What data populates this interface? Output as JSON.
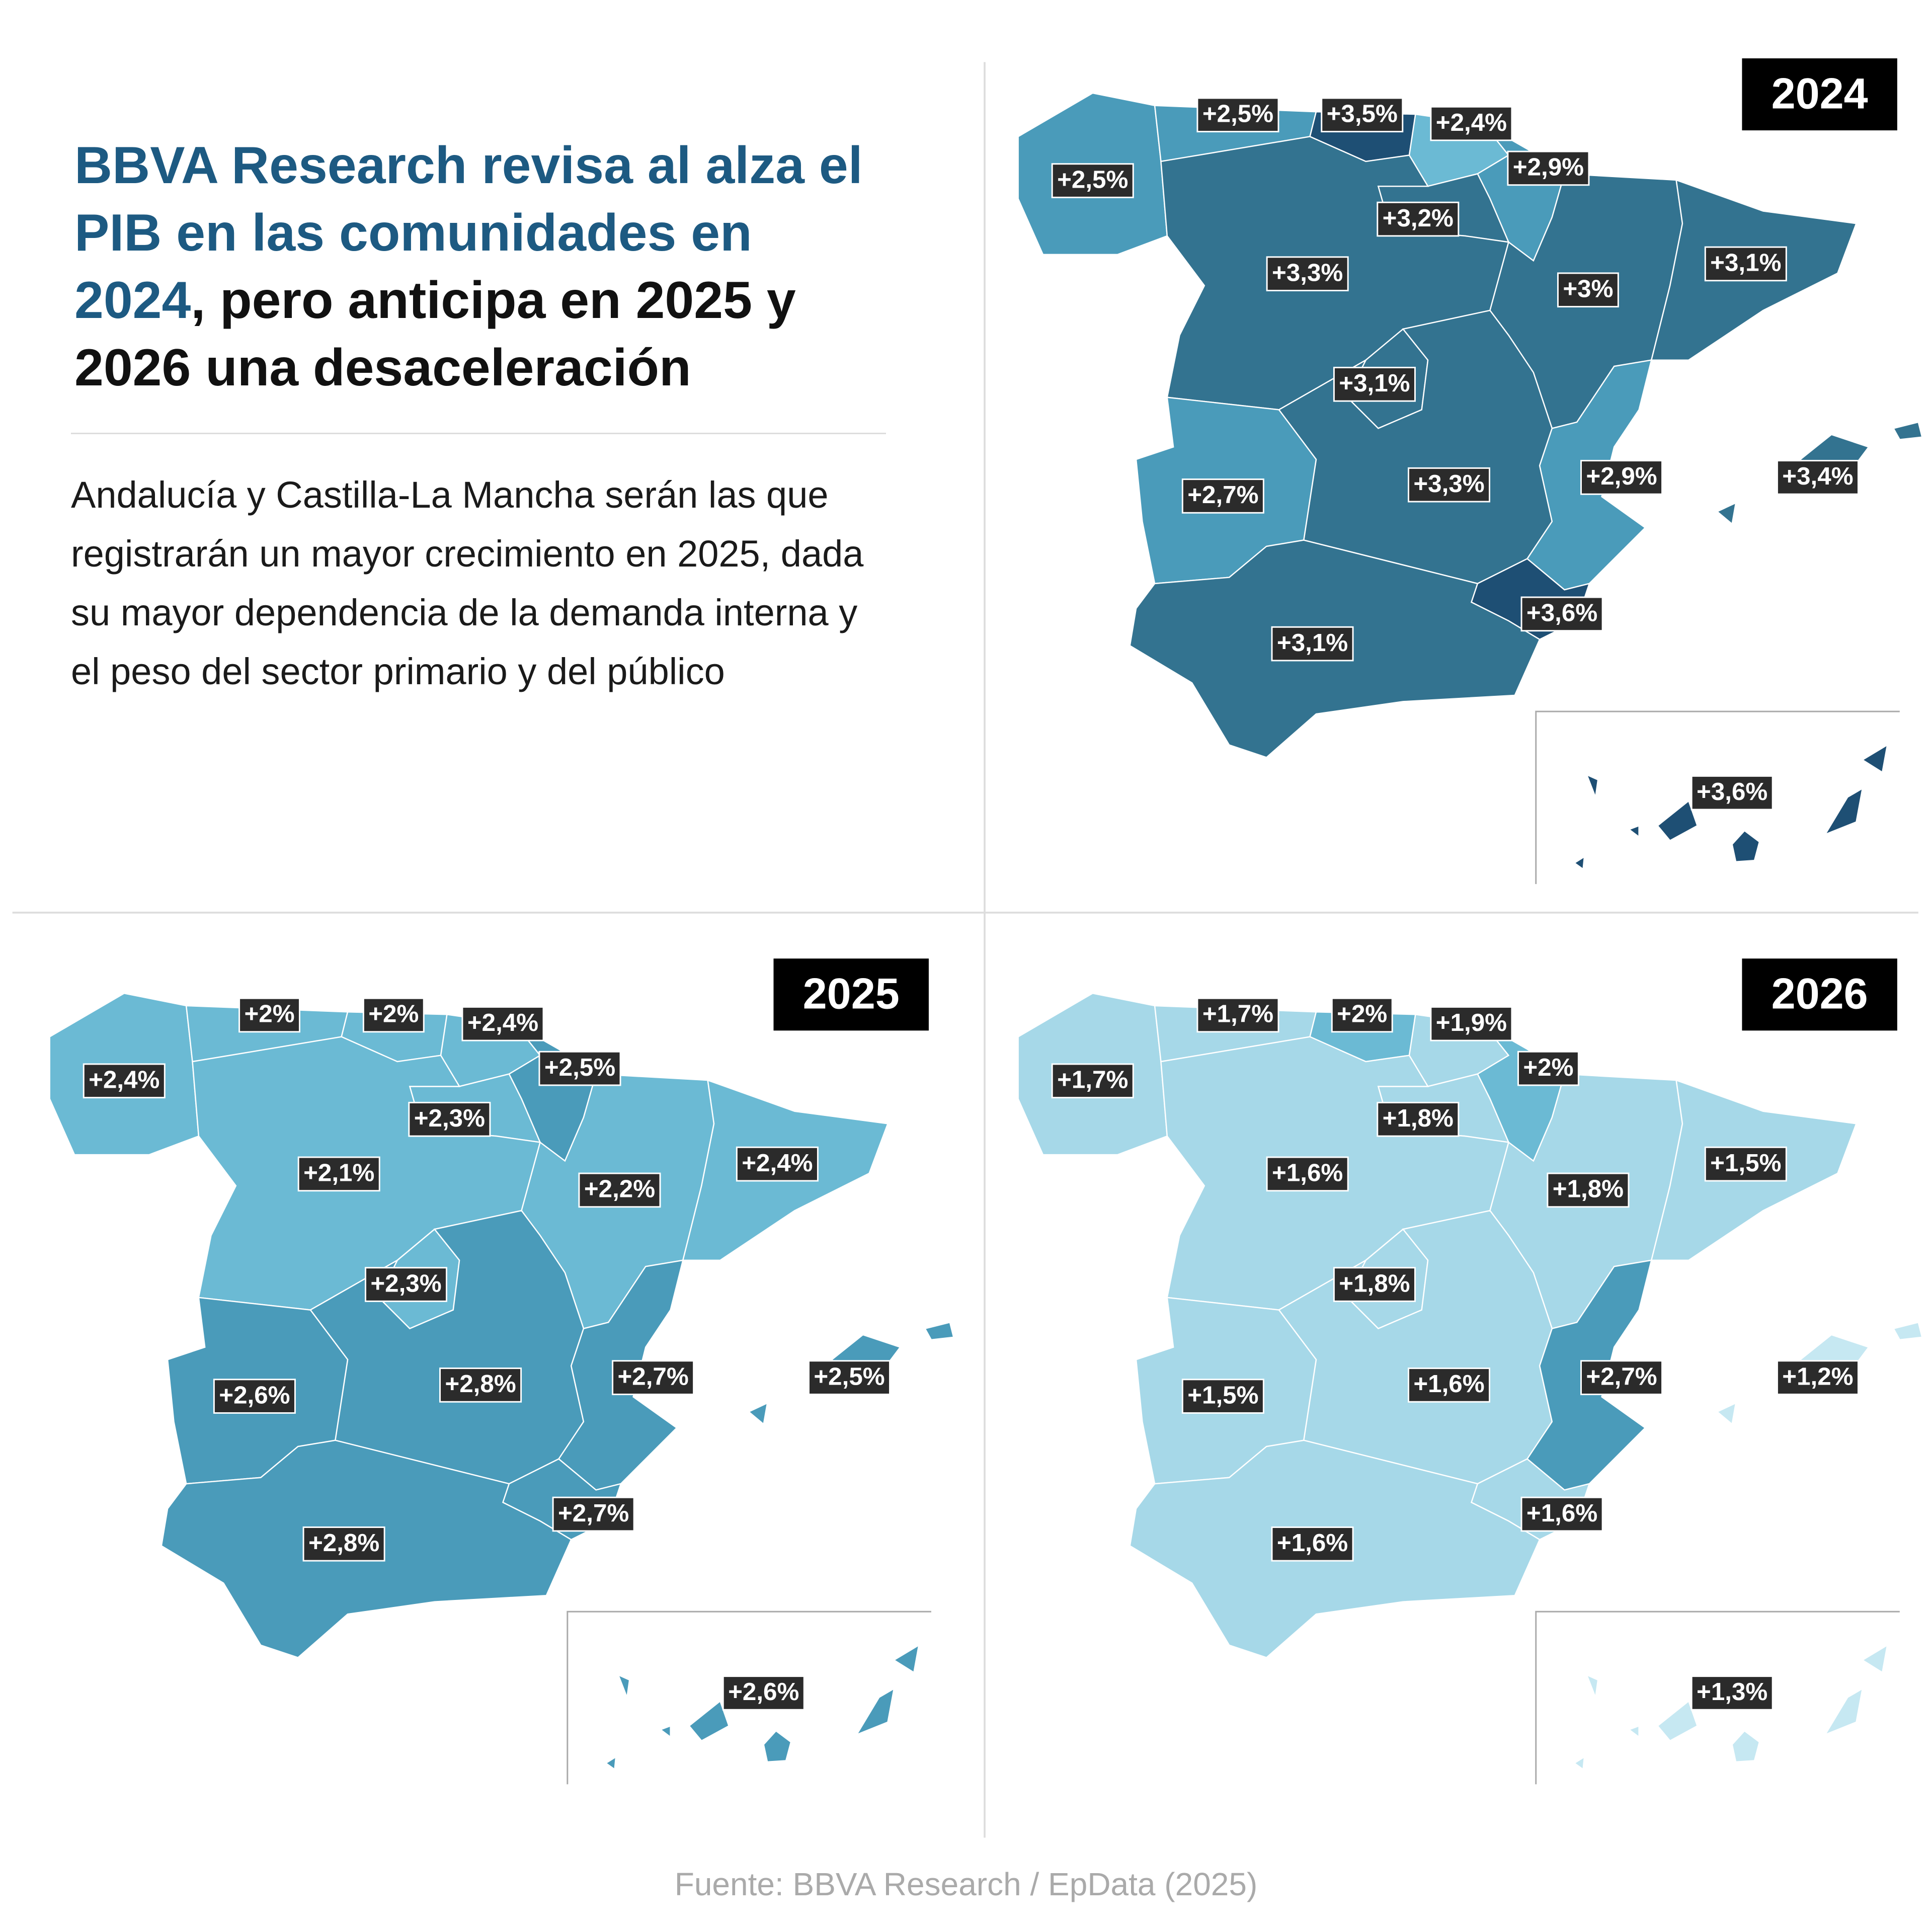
{
  "title": {
    "highlight": "BBVA Research revisa al alza el PIB en las comunidades en 2024",
    "rest": ", pero anticipa en 2025 y 2026 una desaceleración"
  },
  "subtitle": "Andalucía y Castilla-La Mancha serán las que registrarán un mayor crecimiento en 2025, dada su mayor dependencia de la demanda interna y el peso del sector primario y del público",
  "source": "Fuente: BBVA Research / EpData (2025)",
  "maps": [
    {
      "year": "2024",
      "regions": [
        {
          "label": "+2,5%",
          "color": "#4a9bba"
        },
        {
          "label": "+2,5%",
          "color": "#4a9bba"
        },
        {
          "label": "+3,5%",
          "color": "#1e4f74"
        },
        {
          "label": "+2,4%",
          "color": "#6bbad4"
        },
        {
          "label": "+2,9%",
          "color": "#4a9bba"
        },
        {
          "label": "+3,2%",
          "color": "#337390"
        },
        {
          "label": "+3,3%",
          "color": "#337390"
        },
        {
          "label": "+3%",
          "color": "#337390"
        },
        {
          "label": "+3,1%",
          "color": "#337390"
        },
        {
          "label": "+3,1%",
          "color": "#337390"
        },
        {
          "label": "+3,3%",
          "color": "#337390"
        },
        {
          "label": "+2,7%",
          "color": "#4a9bba"
        },
        {
          "label": "+2,9%",
          "color": "#4a9bba"
        },
        {
          "label": "+3,6%",
          "color": "#1e4f74"
        },
        {
          "label": "+3,1%",
          "color": "#337390"
        },
        {
          "label": "+3,4%",
          "color": "#337390"
        },
        {
          "label": "+3,6%",
          "color": "#1e4f74"
        }
      ]
    },
    {
      "year": "2025",
      "regions": [
        {
          "label": "+2,4%",
          "color": "#6bbad4"
        },
        {
          "label": "+2%",
          "color": "#6bbad4"
        },
        {
          "label": "+2%",
          "color": "#6bbad4"
        },
        {
          "label": "+2,4%",
          "color": "#6bbad4"
        },
        {
          "label": "+2,5%",
          "color": "#4a9bba"
        },
        {
          "label": "+2,3%",
          "color": "#6bbad4"
        },
        {
          "label": "+2,1%",
          "color": "#6bbad4"
        },
        {
          "label": "+2,2%",
          "color": "#6bbad4"
        },
        {
          "label": "+2,4%",
          "color": "#6bbad4"
        },
        {
          "label": "+2,3%",
          "color": "#6bbad4"
        },
        {
          "label": "+2,8%",
          "color": "#4a9bba"
        },
        {
          "label": "+2,6%",
          "color": "#4a9bba"
        },
        {
          "label": "+2,7%",
          "color": "#4a9bba"
        },
        {
          "label": "+2,7%",
          "color": "#4a9bba"
        },
        {
          "label": "+2,8%",
          "color": "#4a9bba"
        },
        {
          "label": "+2,5%",
          "color": "#4a9bba"
        },
        {
          "label": "+2,6%",
          "color": "#4a9bba"
        }
      ]
    },
    {
      "year": "2026",
      "regions": [
        {
          "label": "+1,7%",
          "color": "#a6d8e8"
        },
        {
          "label": "+1,7%",
          "color": "#a6d8e8"
        },
        {
          "label": "+2%",
          "color": "#6bbad4"
        },
        {
          "label": "+1,9%",
          "color": "#a6d8e8"
        },
        {
          "label": "+2%",
          "color": "#6bbad4"
        },
        {
          "label": "+1,8%",
          "color": "#a6d8e8"
        },
        {
          "label": "+1,6%",
          "color": "#a6d8e8"
        },
        {
          "label": "+1,8%",
          "color": "#a6d8e8"
        },
        {
          "label": "+1,5%",
          "color": "#a6d8e8"
        },
        {
          "label": "+1,8%",
          "color": "#a6d8e8"
        },
        {
          "label": "+1,6%",
          "color": "#a6d8e8"
        },
        {
          "label": "+1,5%",
          "color": "#a6d8e8"
        },
        {
          "label": "+2,7%",
          "color": "#4a9bba"
        },
        {
          "label": "+1,6%",
          "color": "#a6d8e8"
        },
        {
          "label": "+1,6%",
          "color": "#a6d8e8"
        },
        {
          "label": "+1,2%",
          "color": "#c6e8f2"
        },
        {
          "label": "+1,3%",
          "color": "#c6e8f2"
        }
      ]
    }
  ]
}
